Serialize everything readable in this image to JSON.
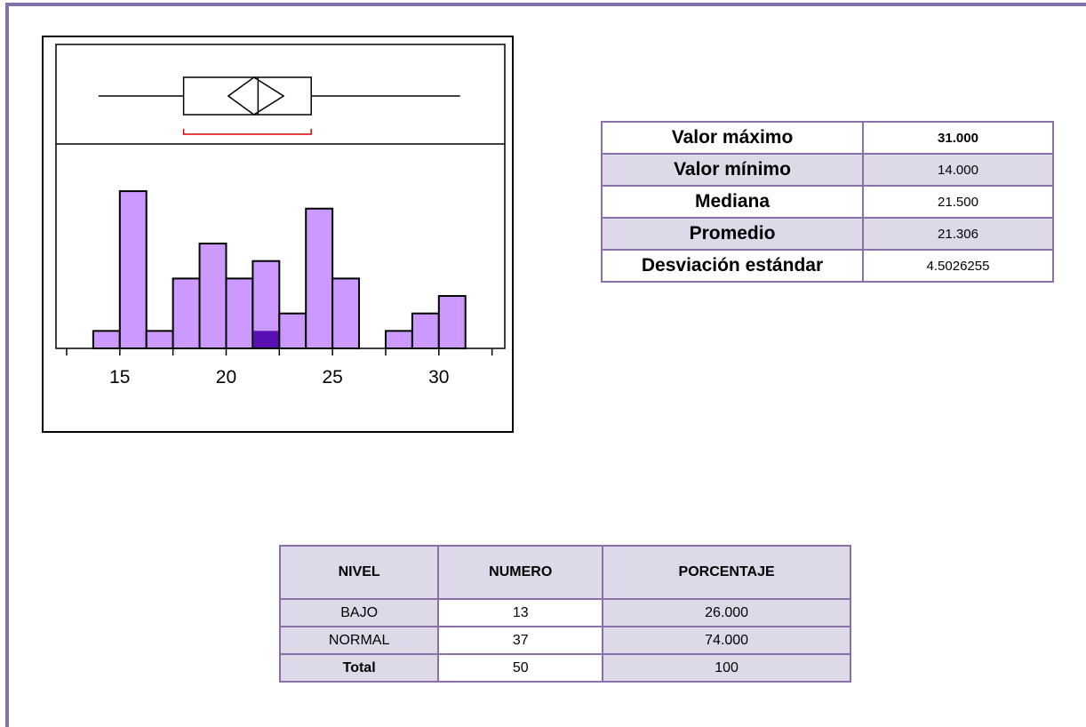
{
  "chart_data": {
    "type": "histogram",
    "bins": [
      13.75,
      15,
      16.25,
      17.5,
      18.75,
      20,
      21.25,
      22.5,
      23.75,
      25,
      26.25,
      27.5,
      28.75,
      30,
      31.25
    ],
    "counts": [
      1,
      9,
      1,
      4,
      6,
      4,
      5,
      2,
      8,
      4,
      0,
      1,
      2,
      3
    ],
    "selected": [
      0,
      0,
      0,
      0,
      0,
      0,
      1,
      0,
      0,
      0,
      0,
      0,
      0,
      0
    ],
    "color": "#cc99ff",
    "selected_color": "#5a0fb4",
    "xlim": [
      12,
      33.1
    ],
    "xticks": [
      15,
      20,
      25,
      30
    ],
    "minor_xticks": [
      12.5,
      17.5,
      22.5,
      27.5,
      32.5
    ],
    "ylim": [
      0,
      11.7
    ],
    "box": {
      "min": 14,
      "q1": 18,
      "median": 21.5,
      "q3": 24,
      "max": 31,
      "mean": 21.306,
      "ci": [
        20.1,
        22.7
      ],
      "shortest_half": [
        18,
        24
      ]
    }
  },
  "stats": {
    "rows": [
      [
        "Valor máximo",
        "31.000"
      ],
      [
        "Valor mínimo",
        "14.000"
      ],
      [
        "Mediana",
        "21.500"
      ],
      [
        "Promedio",
        "21.306"
      ],
      [
        "Desviación estándar",
        "4.5026255"
      ]
    ]
  },
  "levels": {
    "header": [
      "NIVEL",
      "NUMERO",
      "PORCENTAJE"
    ],
    "rows": [
      [
        "BAJO",
        "13",
        "26.000"
      ],
      [
        "NORMAL",
        "37",
        "74.000"
      ],
      [
        "Total",
        "50",
        "100"
      ]
    ]
  }
}
